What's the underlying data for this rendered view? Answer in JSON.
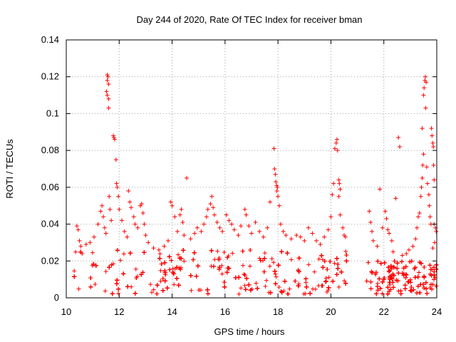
{
  "chart_data": {
    "type": "scatter",
    "title": "Day 244 of 2020, Rate Of TEC Index for receiver bman",
    "xlabel": "GPS time / hours",
    "ylabel": "ROTI / TECUs",
    "xlim": [
      10,
      24
    ],
    "ylim": [
      0,
      0.14
    ],
    "x_ticks": [
      "10",
      "12",
      "14",
      "16",
      "18",
      "20",
      "22",
      "24"
    ],
    "y_ticks": [
      "0",
      "0.02",
      "0.04",
      "0.06",
      "0.08",
      "0.1",
      "0.12",
      "0.14"
    ],
    "grid": true,
    "marker": "plus",
    "color": "#ff0000",
    "dense_bands": [
      {
        "x": [
          10.3,
          20.65
        ],
        "y": [
          0.002,
          0.026
        ]
      },
      {
        "x": [
          21.35,
          24.0
        ],
        "y": [
          0.002,
          0.02
        ]
      }
    ],
    "scatter_points": [
      [
        10.4,
        0.039
      ],
      [
        10.45,
        0.037
      ],
      [
        10.5,
        0.031
      ],
      [
        10.55,
        0.028
      ],
      [
        10.6,
        0.024
      ],
      [
        10.75,
        0.029
      ],
      [
        10.9,
        0.03
      ],
      [
        11.05,
        0.033
      ],
      [
        11.2,
        0.04
      ],
      [
        11.3,
        0.047
      ],
      [
        11.35,
        0.05
      ],
      [
        11.4,
        0.044
      ],
      [
        11.45,
        0.038
      ],
      [
        11.5,
        0.035
      ],
      [
        11.55,
        0.121
      ],
      [
        11.58,
        0.12
      ],
      [
        11.55,
        0.118
      ],
      [
        11.6,
        0.116
      ],
      [
        11.52,
        0.112
      ],
      [
        11.55,
        0.11
      ],
      [
        11.6,
        0.108
      ],
      [
        11.6,
        0.103
      ],
      [
        11.62,
        0.055
      ],
      [
        11.65,
        0.048
      ],
      [
        11.7,
        0.042
      ],
      [
        11.78,
        0.088
      ],
      [
        11.8,
        0.087
      ],
      [
        11.83,
        0.086
      ],
      [
        11.88,
        0.075
      ],
      [
        11.9,
        0.062
      ],
      [
        11.93,
        0.06
      ],
      [
        11.97,
        0.055
      ],
      [
        12.0,
        0.048
      ],
      [
        12.1,
        0.042
      ],
      [
        12.2,
        0.036
      ],
      [
        12.3,
        0.033
      ],
      [
        12.35,
        0.058
      ],
      [
        12.4,
        0.052
      ],
      [
        12.45,
        0.049
      ],
      [
        12.55,
        0.044
      ],
      [
        12.6,
        0.04
      ],
      [
        12.7,
        0.038
      ],
      [
        12.8,
        0.05
      ],
      [
        12.85,
        0.051
      ],
      [
        12.9,
        0.046
      ],
      [
        12.95,
        0.04
      ],
      [
        13.0,
        0.034
      ],
      [
        13.1,
        0.03
      ],
      [
        13.3,
        0.027
      ],
      [
        13.5,
        0.026
      ],
      [
        13.7,
        0.028
      ],
      [
        13.85,
        0.031
      ],
      [
        13.95,
        0.052
      ],
      [
        14.0,
        0.05
      ],
      [
        14.1,
        0.044
      ],
      [
        14.2,
        0.036
      ],
      [
        14.3,
        0.045
      ],
      [
        14.35,
        0.048
      ],
      [
        14.4,
        0.041
      ],
      [
        14.45,
        0.034
      ],
      [
        14.55,
        0.065
      ],
      [
        14.7,
        0.032
      ],
      [
        14.85,
        0.035
      ],
      [
        14.95,
        0.038
      ],
      [
        15.1,
        0.036
      ],
      [
        15.2,
        0.04
      ],
      [
        15.3,
        0.044
      ],
      [
        15.35,
        0.048
      ],
      [
        15.45,
        0.051
      ],
      [
        15.5,
        0.055
      ],
      [
        15.55,
        0.049
      ],
      [
        15.6,
        0.045
      ],
      [
        15.7,
        0.041
      ],
      [
        15.8,
        0.038
      ],
      [
        15.9,
        0.036
      ],
      [
        16.05,
        0.045
      ],
      [
        16.15,
        0.042
      ],
      [
        16.25,
        0.04
      ],
      [
        16.35,
        0.037
      ],
      [
        16.5,
        0.034
      ],
      [
        16.6,
        0.039
      ],
      [
        16.75,
        0.048
      ],
      [
        16.8,
        0.045
      ],
      [
        16.9,
        0.039
      ],
      [
        17.0,
        0.035
      ],
      [
        17.15,
        0.041
      ],
      [
        17.3,
        0.036
      ],
      [
        17.45,
        0.033
      ],
      [
        17.6,
        0.038
      ],
      [
        17.7,
        0.052
      ],
      [
        17.85,
        0.081
      ],
      [
        17.87,
        0.07
      ],
      [
        17.9,
        0.067
      ],
      [
        17.92,
        0.063
      ],
      [
        17.95,
        0.061
      ],
      [
        17.98,
        0.06
      ],
      [
        17.96,
        0.058
      ],
      [
        18.0,
        0.055
      ],
      [
        18.05,
        0.05
      ],
      [
        18.1,
        0.04
      ],
      [
        18.2,
        0.036
      ],
      [
        18.3,
        0.034
      ],
      [
        18.5,
        0.032
      ],
      [
        18.7,
        0.034
      ],
      [
        18.85,
        0.033
      ],
      [
        19.0,
        0.031
      ],
      [
        19.15,
        0.038
      ],
      [
        19.3,
        0.035
      ],
      [
        19.45,
        0.031
      ],
      [
        19.6,
        0.029
      ],
      [
        19.75,
        0.033
      ],
      [
        19.9,
        0.037
      ],
      [
        20.0,
        0.044
      ],
      [
        20.05,
        0.056
      ],
      [
        20.1,
        0.062
      ],
      [
        20.15,
        0.081
      ],
      [
        20.2,
        0.084
      ],
      [
        20.23,
        0.086
      ],
      [
        20.25,
        0.08
      ],
      [
        20.3,
        0.064
      ],
      [
        20.32,
        0.062
      ],
      [
        20.35,
        0.059
      ],
      [
        20.3,
        0.055
      ],
      [
        20.35,
        0.045
      ],
      [
        20.45,
        0.038
      ],
      [
        20.5,
        0.034
      ],
      [
        20.55,
        0.033
      ],
      [
        21.45,
        0.047
      ],
      [
        21.5,
        0.041
      ],
      [
        21.55,
        0.036
      ],
      [
        21.6,
        0.031
      ],
      [
        21.75,
        0.028
      ],
      [
        21.85,
        0.059
      ],
      [
        21.95,
        0.038
      ],
      [
        22.05,
        0.047
      ],
      [
        22.1,
        0.043
      ],
      [
        22.15,
        0.037
      ],
      [
        22.2,
        0.035
      ],
      [
        22.3,
        0.031
      ],
      [
        22.35,
        0.025
      ],
      [
        22.45,
        0.054
      ],
      [
        22.55,
        0.087
      ],
      [
        22.6,
        0.082
      ],
      [
        22.7,
        0.023
      ],
      [
        22.85,
        0.024
      ],
      [
        22.95,
        0.026
      ],
      [
        23.1,
        0.028
      ],
      [
        23.2,
        0.032
      ],
      [
        23.25,
        0.038
      ],
      [
        23.3,
        0.044
      ],
      [
        23.35,
        0.046
      ],
      [
        23.4,
        0.055
      ],
      [
        23.42,
        0.06
      ],
      [
        23.45,
        0.065
      ],
      [
        23.47,
        0.072
      ],
      [
        23.5,
        0.078
      ],
      [
        23.45,
        0.092
      ],
      [
        23.5,
        0.11
      ],
      [
        23.52,
        0.114
      ],
      [
        23.55,
        0.118
      ],
      [
        23.57,
        0.12
      ],
      [
        23.6,
        0.117
      ],
      [
        23.58,
        0.103
      ],
      [
        23.62,
        0.071
      ],
      [
        23.65,
        0.062
      ],
      [
        23.7,
        0.056
      ],
      [
        23.72,
        0.05
      ],
      [
        23.75,
        0.044
      ],
      [
        23.78,
        0.04
      ],
      [
        23.8,
        0.092
      ],
      [
        23.82,
        0.088
      ],
      [
        23.85,
        0.084
      ],
      [
        23.87,
        0.082
      ],
      [
        23.88,
        0.072
      ],
      [
        23.9,
        0.064
      ],
      [
        23.9,
        0.04
      ],
      [
        23.95,
        0.038
      ],
      [
        23.98,
        0.036
      ],
      [
        23.92,
        0.03
      ],
      [
        23.85,
        0.027
      ]
    ]
  }
}
